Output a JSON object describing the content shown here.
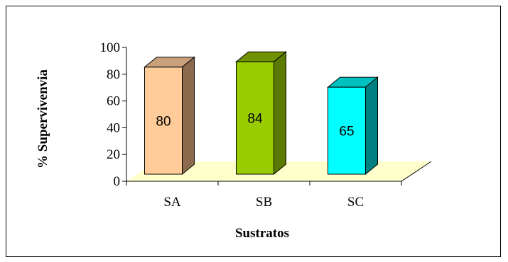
{
  "chart_data": {
    "type": "bar",
    "three_d": true,
    "categories": [
      "SA",
      "SB",
      "SC"
    ],
    "values": [
      80,
      84,
      65
    ],
    "data_labels": [
      "80",
      "84",
      "65"
    ],
    "xlabel": "Sustratos",
    "ylabel": "% Supervivenvia",
    "ylim": [
      0,
      100
    ],
    "yticks": [
      0,
      20,
      40,
      60,
      80,
      100
    ],
    "grid": false,
    "legend": "none",
    "colors": {
      "bars": [
        {
          "front": "#FFCC99",
          "top": "#C8A07A",
          "side": "#8C6A4E"
        },
        {
          "front": "#99CC00",
          "top": "#6E9200",
          "side": "#5A7A00"
        },
        {
          "front": "#00FFFF",
          "top": "#00C0C0",
          "side": "#008080"
        }
      ],
      "floor": "#FFFFCC",
      "axis": "#000000"
    }
  }
}
